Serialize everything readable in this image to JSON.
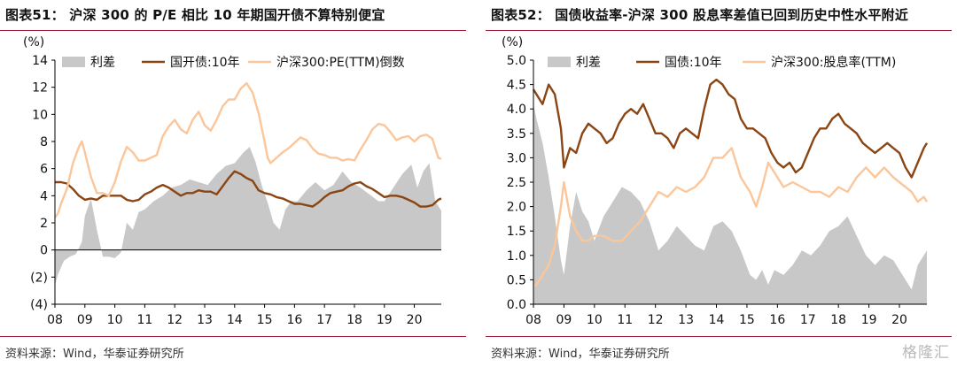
{
  "figures": [
    {
      "title": "图表51： 沪深 300 的 P/E 相比 10 年期国开债不算特别便宜",
      "source": "资料来源：Wind，华泰证券研究所"
    },
    {
      "title": "图表52： 国债收益率-沪深 300 股息率差值已回到历史中性水平附近",
      "source": "资料来源：Wind，华泰证券研究所"
    }
  ],
  "watermark": "格隆汇",
  "chart_data": [
    {
      "type": "area",
      "unit": "(%)",
      "ylim": [
        -4,
        14
      ],
      "yticks": [
        -4,
        -2,
        0,
        2,
        4,
        6,
        8,
        10,
        12,
        14
      ],
      "ytick_labels": [
        "(4)",
        "(2)",
        "0",
        "2",
        "4",
        "6",
        "8",
        "10",
        "12",
        "14"
      ],
      "xlim": [
        2008.0,
        2020.9
      ],
      "xticks": [
        "08",
        "09",
        "10",
        "11",
        "12",
        "13",
        "14",
        "15",
        "16",
        "17",
        "18",
        "19",
        "20"
      ],
      "series": [
        {
          "name": "利差",
          "kind": "area",
          "color": "#c8c8c8",
          "x": [
            2008.0,
            2008.1,
            2008.3,
            2008.5,
            2008.7,
            2008.9,
            2009.0,
            2009.2,
            2009.4,
            2009.6,
            2009.8,
            2010.0,
            2010.2,
            2010.4,
            2010.6,
            2010.8,
            2011.0,
            2011.3,
            2011.6,
            2011.9,
            2012.2,
            2012.5,
            2012.8,
            2013.1,
            2013.4,
            2013.7,
            2014.0,
            2014.3,
            2014.5,
            2014.7,
            2014.9,
            2015.1,
            2015.3,
            2015.5,
            2015.7,
            2015.9,
            2016.1,
            2016.4,
            2016.7,
            2017.0,
            2017.3,
            2017.6,
            2017.9,
            2018.2,
            2018.5,
            2018.8,
            2019.0,
            2019.3,
            2019.6,
            2019.9,
            2020.1,
            2020.3,
            2020.5,
            2020.7,
            2020.9
          ],
          "y": [
            -2.6,
            -1.8,
            -0.8,
            -0.5,
            -0.3,
            0.6,
            2.5,
            3.8,
            1.5,
            -0.5,
            -0.5,
            -0.6,
            -0.2,
            2.0,
            1.5,
            2.8,
            3.0,
            3.6,
            4.0,
            4.6,
            4.8,
            5.2,
            5.0,
            4.8,
            5.6,
            6.2,
            6.4,
            7.2,
            7.6,
            6.5,
            4.8,
            3.5,
            2.0,
            1.5,
            3.0,
            3.6,
            3.6,
            4.4,
            5.0,
            4.4,
            4.8,
            5.8,
            5.0,
            4.6,
            4.1,
            3.6,
            3.6,
            4.6,
            5.6,
            6.3,
            4.6,
            5.8,
            6.4,
            3.6,
            2.9
          ]
        },
        {
          "name": "国开债:10年",
          "kind": "line",
          "color": "#8b4513",
          "x": [
            2008.0,
            2008.2,
            2008.4,
            2008.6,
            2008.8,
            2009.0,
            2009.2,
            2009.4,
            2009.6,
            2009.8,
            2010.0,
            2010.2,
            2010.4,
            2010.6,
            2010.8,
            2011.0,
            2011.2,
            2011.4,
            2011.6,
            2011.8,
            2012.0,
            2012.2,
            2012.4,
            2012.6,
            2012.8,
            2013.0,
            2013.2,
            2013.4,
            2013.6,
            2013.8,
            2014.0,
            2014.2,
            2014.4,
            2014.6,
            2014.8,
            2015.0,
            2015.2,
            2015.4,
            2015.6,
            2015.8,
            2016.0,
            2016.2,
            2016.4,
            2016.6,
            2016.8,
            2017.0,
            2017.2,
            2017.4,
            2017.6,
            2017.8,
            2018.0,
            2018.2,
            2018.4,
            2018.6,
            2018.8,
            2019.0,
            2019.2,
            2019.4,
            2019.6,
            2019.8,
            2020.0,
            2020.2,
            2020.4,
            2020.6,
            2020.8,
            2020.9
          ],
          "y": [
            5.0,
            5.0,
            4.9,
            4.5,
            4.0,
            3.7,
            3.8,
            3.7,
            4.0,
            4.0,
            4.0,
            4.0,
            3.7,
            3.6,
            3.7,
            4.1,
            4.3,
            4.6,
            4.8,
            4.6,
            4.3,
            4.0,
            4.2,
            4.2,
            4.4,
            4.3,
            4.3,
            4.1,
            4.7,
            5.3,
            5.8,
            5.6,
            5.3,
            5.1,
            4.4,
            4.2,
            4.1,
            3.9,
            3.8,
            3.6,
            3.4,
            3.4,
            3.3,
            3.2,
            3.5,
            3.9,
            4.2,
            4.3,
            4.4,
            4.7,
            4.9,
            5.0,
            4.7,
            4.5,
            4.2,
            3.9,
            4.0,
            4.0,
            3.9,
            3.7,
            3.5,
            3.2,
            3.2,
            3.3,
            3.7,
            3.8
          ]
        },
        {
          "name": "沪深300:PE(TTM)倒数",
          "kind": "line",
          "color": "#fbc69a",
          "x": [
            2008.0,
            2008.1,
            2008.2,
            2008.4,
            2008.6,
            2008.8,
            2008.9,
            2009.0,
            2009.2,
            2009.4,
            2009.6,
            2009.8,
            2010.0,
            2010.2,
            2010.4,
            2010.6,
            2010.8,
            2011.0,
            2011.2,
            2011.4,
            2011.6,
            2011.8,
            2012.0,
            2012.2,
            2012.4,
            2012.6,
            2012.8,
            2013.0,
            2013.2,
            2013.4,
            2013.6,
            2013.8,
            2014.0,
            2014.2,
            2014.4,
            2014.6,
            2014.8,
            2015.0,
            2015.1,
            2015.2,
            2015.4,
            2015.6,
            2015.8,
            2016.0,
            2016.2,
            2016.4,
            2016.6,
            2016.8,
            2017.0,
            2017.2,
            2017.4,
            2017.6,
            2017.8,
            2018.0,
            2018.2,
            2018.4,
            2018.6,
            2018.8,
            2019.0,
            2019.2,
            2019.4,
            2019.6,
            2019.8,
            2020.0,
            2020.2,
            2020.4,
            2020.6,
            2020.8,
            2020.9
          ],
          "y": [
            2.4,
            2.7,
            3.4,
            4.5,
            6.4,
            7.6,
            8.0,
            7.2,
            5.4,
            4.2,
            4.2,
            4.0,
            5.0,
            6.5,
            7.6,
            7.2,
            6.6,
            6.6,
            6.8,
            7.0,
            8.4,
            9.1,
            9.6,
            8.9,
            8.6,
            9.6,
            10.2,
            9.2,
            8.8,
            9.6,
            10.6,
            11.1,
            11.1,
            11.9,
            12.3,
            11.6,
            10.1,
            8.0,
            6.8,
            6.4,
            6.8,
            7.2,
            7.5,
            7.9,
            8.3,
            8.1,
            7.5,
            7.1,
            7.0,
            6.8,
            6.8,
            6.6,
            6.7,
            6.6,
            7.4,
            8.1,
            8.9,
            9.3,
            9.2,
            8.7,
            8.1,
            8.3,
            8.4,
            8.0,
            8.4,
            8.5,
            8.2,
            6.8,
            6.7
          ]
        }
      ]
    },
    {
      "type": "area",
      "unit": "(%)",
      "ylim": [
        0,
        5
      ],
      "yticks": [
        0,
        0.5,
        1,
        1.5,
        2,
        2.5,
        3,
        3.5,
        4,
        4.5,
        5
      ],
      "ytick_labels": [
        "0.0",
        "0.5",
        "1.0",
        "1.5",
        "2.0",
        "2.5",
        "3.0",
        "3.5",
        "4.0",
        "4.5",
        "5.0"
      ],
      "xlim": [
        2008.0,
        2020.9
      ],
      "xticks": [
        "08",
        "09",
        "10",
        "11",
        "12",
        "13",
        "14",
        "15",
        "16",
        "17",
        "18",
        "19",
        "20"
      ],
      "series": [
        {
          "name": "利差",
          "kind": "area",
          "color": "#c8c8c8",
          "x": [
            2008.0,
            2008.1,
            2008.3,
            2008.5,
            2008.7,
            2008.9,
            2009.0,
            2009.2,
            2009.4,
            2009.6,
            2009.8,
            2010.0,
            2010.3,
            2010.6,
            2010.9,
            2011.2,
            2011.5,
            2011.8,
            2012.1,
            2012.4,
            2012.7,
            2013.0,
            2013.3,
            2013.6,
            2013.9,
            2014.2,
            2014.5,
            2014.8,
            2015.1,
            2015.3,
            2015.5,
            2015.7,
            2015.9,
            2016.2,
            2016.5,
            2016.8,
            2017.1,
            2017.4,
            2017.7,
            2018.0,
            2018.3,
            2018.6,
            2018.9,
            2019.2,
            2019.5,
            2019.8,
            2020.0,
            2020.2,
            2020.4,
            2020.6,
            2020.8,
            2020.9
          ],
          "y": [
            4.1,
            3.8,
            3.3,
            2.6,
            1.8,
            0.9,
            0.6,
            1.6,
            2.3,
            1.9,
            1.7,
            1.3,
            1.8,
            2.1,
            2.4,
            2.3,
            2.1,
            1.7,
            1.1,
            1.3,
            1.6,
            1.4,
            1.2,
            1.1,
            1.6,
            1.7,
            1.5,
            1.1,
            0.6,
            0.5,
            0.7,
            0.4,
            0.7,
            0.6,
            0.8,
            1.1,
            1.0,
            1.2,
            1.5,
            1.6,
            1.8,
            1.4,
            1.0,
            0.8,
            1.0,
            0.9,
            0.7,
            0.5,
            0.3,
            0.8,
            1.0,
            1.1
          ]
        },
        {
          "name": "国债:10年",
          "kind": "line",
          "color": "#8b4513",
          "x": [
            2008.0,
            2008.1,
            2008.3,
            2008.5,
            2008.7,
            2008.9,
            2009.0,
            2009.2,
            2009.4,
            2009.6,
            2009.8,
            2010.0,
            2010.2,
            2010.4,
            2010.6,
            2010.8,
            2011.0,
            2011.2,
            2011.4,
            2011.6,
            2011.8,
            2012.0,
            2012.2,
            2012.4,
            2012.6,
            2012.8,
            2013.0,
            2013.2,
            2013.4,
            2013.6,
            2013.8,
            2014.0,
            2014.2,
            2014.4,
            2014.6,
            2014.8,
            2015.0,
            2015.2,
            2015.4,
            2015.6,
            2015.8,
            2016.0,
            2016.2,
            2016.4,
            2016.6,
            2016.8,
            2017.0,
            2017.2,
            2017.4,
            2017.6,
            2017.8,
            2018.0,
            2018.2,
            2018.4,
            2018.6,
            2018.8,
            2019.0,
            2019.2,
            2019.4,
            2019.6,
            2019.8,
            2020.0,
            2020.2,
            2020.4,
            2020.6,
            2020.8,
            2020.9
          ],
          "y": [
            4.4,
            4.3,
            4.1,
            4.5,
            4.3,
            3.6,
            2.8,
            3.2,
            3.1,
            3.5,
            3.7,
            3.6,
            3.5,
            3.3,
            3.4,
            3.7,
            3.9,
            4.0,
            3.9,
            4.1,
            3.8,
            3.5,
            3.5,
            3.4,
            3.2,
            3.5,
            3.6,
            3.5,
            3.4,
            4.0,
            4.5,
            4.6,
            4.5,
            4.3,
            4.2,
            3.8,
            3.6,
            3.6,
            3.5,
            3.4,
            3.1,
            2.9,
            2.8,
            2.9,
            2.7,
            2.8,
            3.1,
            3.4,
            3.6,
            3.6,
            3.8,
            3.9,
            3.7,
            3.6,
            3.5,
            3.3,
            3.2,
            3.1,
            3.2,
            3.3,
            3.2,
            3.1,
            2.8,
            2.6,
            2.9,
            3.2,
            3.3
          ]
        },
        {
          "name": "沪深300:股息率(TTM)",
          "kind": "line",
          "color": "#fbc69a",
          "x": [
            2008.0,
            2008.1,
            2008.3,
            2008.5,
            2008.7,
            2008.9,
            2009.0,
            2009.2,
            2009.4,
            2009.6,
            2009.8,
            2010.0,
            2010.3,
            2010.6,
            2010.9,
            2011.2,
            2011.5,
            2011.8,
            2012.1,
            2012.4,
            2012.7,
            2013.0,
            2013.3,
            2013.6,
            2013.9,
            2014.2,
            2014.5,
            2014.8,
            2015.1,
            2015.3,
            2015.5,
            2015.7,
            2015.9,
            2016.2,
            2016.5,
            2016.8,
            2017.1,
            2017.4,
            2017.7,
            2018.0,
            2018.3,
            2018.6,
            2018.9,
            2019.2,
            2019.5,
            2019.8,
            2020.0,
            2020.2,
            2020.4,
            2020.6,
            2020.8,
            2020.9
          ],
          "y": [
            0.35,
            0.4,
            0.6,
            0.8,
            1.2,
            2.0,
            2.5,
            1.8,
            1.5,
            1.3,
            1.3,
            1.4,
            1.4,
            1.3,
            1.3,
            1.5,
            1.7,
            2.0,
            2.3,
            2.2,
            2.4,
            2.3,
            2.4,
            2.6,
            3.0,
            3.0,
            3.2,
            2.6,
            2.3,
            2.0,
            2.4,
            2.9,
            2.7,
            2.4,
            2.5,
            2.4,
            2.3,
            2.3,
            2.2,
            2.4,
            2.3,
            2.6,
            2.8,
            2.6,
            2.8,
            2.6,
            2.5,
            2.4,
            2.3,
            2.1,
            2.2,
            2.1
          ]
        }
      ]
    }
  ]
}
